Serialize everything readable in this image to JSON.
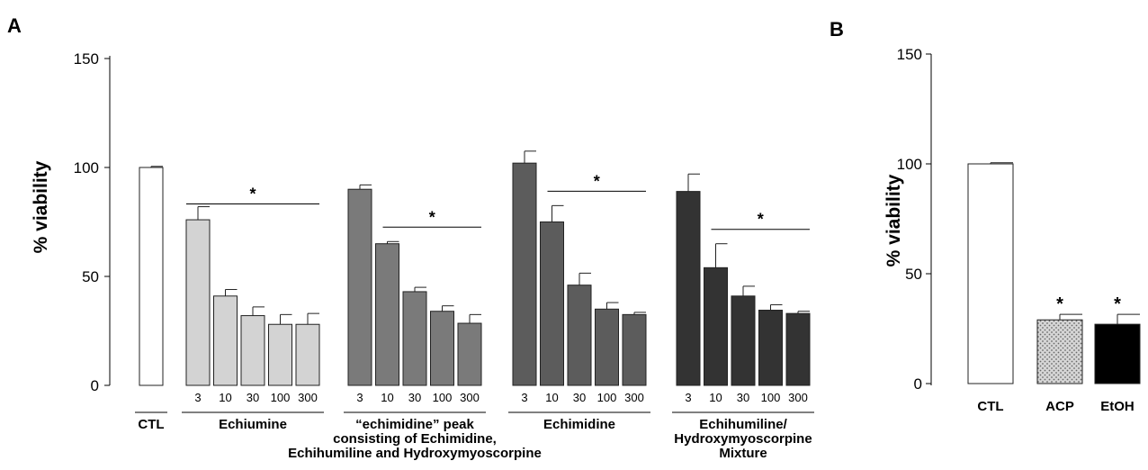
{
  "chart_data": [
    {
      "panel_label": "A",
      "type": "bar",
      "ylabel": "% viability",
      "ylim": [
        0,
        150
      ],
      "yticks": [
        0,
        50,
        100,
        150
      ],
      "groups": [
        {
          "name": "CTL",
          "color": "#ffffff",
          "bars": [
            {
              "dose": "",
              "value": 100,
              "error": 0.5
            }
          ],
          "significance": ""
        },
        {
          "name": "Echiumine",
          "color": "#d3d3d3",
          "bars": [
            {
              "dose": "3",
              "value": 76,
              "error": 6
            },
            {
              "dose": "10",
              "value": 41,
              "error": 3
            },
            {
              "dose": "30",
              "value": 32,
              "error": 4
            },
            {
              "dose": "100",
              "value": 28,
              "error": 4.5
            },
            {
              "dose": "300",
              "value": 28,
              "error": 5
            }
          ],
          "significance": "*"
        },
        {
          "name": "“echimidine” peak consisting of Echimidine, Echihumiline and Hydroxymyoscorpine",
          "name_lines": [
            "“echimidine” peak",
            "consisting of Echimidine,",
            "Echihumiline and Hydroxymyoscorpine"
          ],
          "color": "#7a7a7a",
          "bars": [
            {
              "dose": "3",
              "value": 90,
              "error": 2
            },
            {
              "dose": "10",
              "value": 65,
              "error": 1
            },
            {
              "dose": "30",
              "value": 43,
              "error": 2
            },
            {
              "dose": "100",
              "value": 34,
              "error": 2.5
            },
            {
              "dose": "300",
              "value": 28.5,
              "error": 4
            }
          ],
          "significance": "*"
        },
        {
          "name": "Echimidine",
          "color": "#5c5c5c",
          "bars": [
            {
              "dose": "3",
              "value": 102,
              "error": 5.5
            },
            {
              "dose": "10",
              "value": 75,
              "error": 7.5
            },
            {
              "dose": "30",
              "value": 46,
              "error": 5.5
            },
            {
              "dose": "100",
              "value": 35,
              "error": 3
            },
            {
              "dose": "300",
              "value": 32.5,
              "error": 1
            }
          ],
          "significance": "*"
        },
        {
          "name": "Echihumiline/ Hydroxymyoscorpine Mixture",
          "name_lines": [
            "Echihumiline/",
            "Hydroxymyoscorpine",
            "Mixture"
          ],
          "color": "#333333",
          "bars": [
            {
              "dose": "3",
              "value": 89,
              "error": 8
            },
            {
              "dose": "10",
              "value": 54,
              "error": 11
            },
            {
              "dose": "30",
              "value": 41,
              "error": 4.5
            },
            {
              "dose": "100",
              "value": 34.5,
              "error": 2.5
            },
            {
              "dose": "300",
              "value": 33,
              "error": 1
            }
          ],
          "significance": "*"
        }
      ]
    },
    {
      "panel_label": "B",
      "type": "bar",
      "ylabel": "% viability",
      "ylim": [
        0,
        150
      ],
      "yticks": [
        0,
        50,
        100,
        150
      ],
      "categories": [
        "CTL",
        "ACP",
        "EtOH"
      ],
      "values": [
        100,
        29,
        27
      ],
      "errors": [
        0.5,
        2.5,
        4.5
      ],
      "colors": [
        "#ffffff",
        "#c8c8c8",
        "#000000"
      ],
      "patterns": [
        "none",
        "dotted",
        "none"
      ],
      "significance": [
        "",
        "*",
        "*"
      ]
    }
  ]
}
